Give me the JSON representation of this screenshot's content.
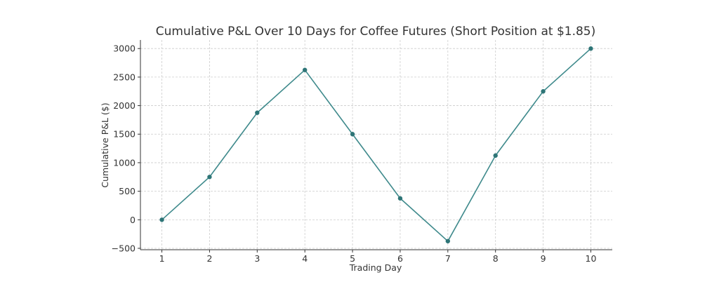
{
  "chart_data": {
    "type": "line",
    "title": "Cumulative P&L Over 10 Days for Coffee Futures (Short Position at $1.85)",
    "xlabel": "Trading Day",
    "ylabel": "Cumulative P&L ($)",
    "x": [
      1,
      2,
      3,
      4,
      5,
      6,
      7,
      8,
      9,
      10
    ],
    "series": [
      {
        "values": [
          0,
          750,
          1875,
          2625,
          1500,
          375,
          -375,
          1125,
          2250,
          3000
        ]
      }
    ],
    "xticks": [
      "1",
      "2",
      "3",
      "4",
      "5",
      "6",
      "7",
      "8",
      "9",
      "10"
    ],
    "yticks": [
      -500,
      0,
      500,
      1000,
      1500,
      2000,
      2500,
      3000
    ],
    "ytick_labels": [
      "−500",
      "0",
      "500",
      "1000",
      "1500",
      "2000",
      "2500",
      "3000"
    ],
    "xlim": [
      0.55,
      10.45
    ],
    "ylim": [
      -525,
      3150
    ],
    "grid": true,
    "colors": {
      "line": "#3f8a8c",
      "marker": "#2e7577"
    }
  }
}
